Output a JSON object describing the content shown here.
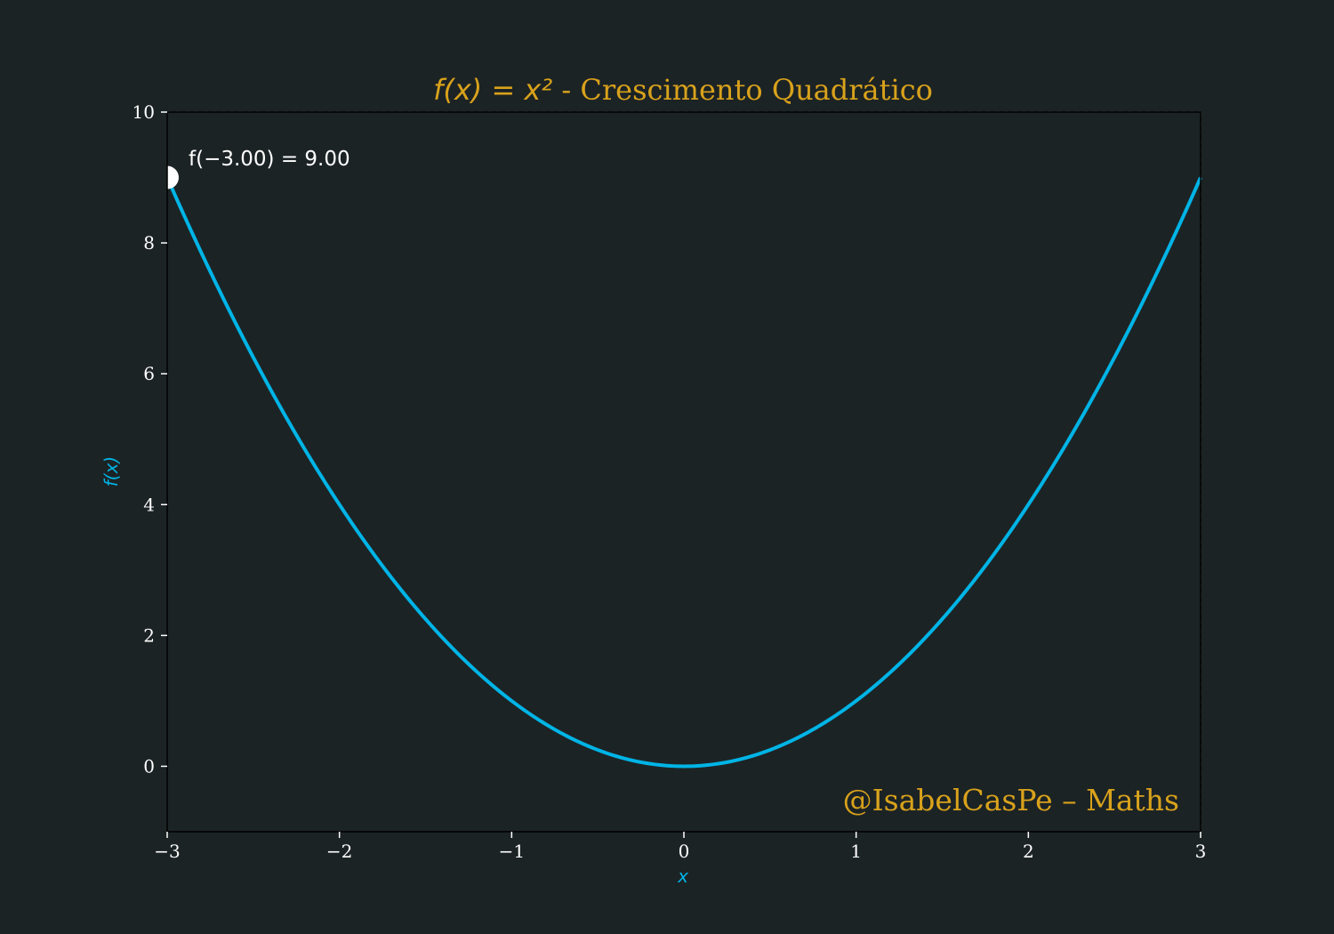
{
  "chart_data": {
    "type": "line",
    "title_math": "f(x) = x²",
    "title_text": " - Crescimento Quadrático",
    "xlabel": "x",
    "ylabel": "f(x)",
    "xlim": [
      -3,
      3
    ],
    "ylim": [
      -1,
      10
    ],
    "xticks": [
      -3,
      -2,
      -1,
      0,
      1,
      2,
      3
    ],
    "xtick_labels": [
      "−3",
      "−2",
      "−1",
      "0",
      "1",
      "2",
      "3"
    ],
    "yticks": [
      0,
      2,
      4,
      6,
      8,
      10
    ],
    "ytick_labels": [
      "0",
      "2",
      "4",
      "6",
      "8",
      "10"
    ],
    "grid": true,
    "series": [
      {
        "function": "x^2",
        "x": [
          -3,
          -2.5,
          -2,
          -1.5,
          -1,
          -0.5,
          0,
          0.5,
          1,
          1.5,
          2,
          2.5,
          3
        ],
        "y": [
          9,
          6.25,
          4,
          2.25,
          1,
          0.25,
          0,
          0.25,
          1,
          2.25,
          4,
          6.25,
          9
        ],
        "color": "#00b4e6"
      }
    ],
    "highlight_point": {
      "x": -3.0,
      "y": 9.0,
      "label": "f(−3.00) = 9.00",
      "color": "#ffffff"
    },
    "watermark": "@IsabelCasPe – Maths",
    "colors": {
      "background": "#1c2325",
      "accent": "#d9a21b",
      "line": "#00b4e6",
      "grid": "#5a6163",
      "tick_text": "#ffffff"
    }
  }
}
